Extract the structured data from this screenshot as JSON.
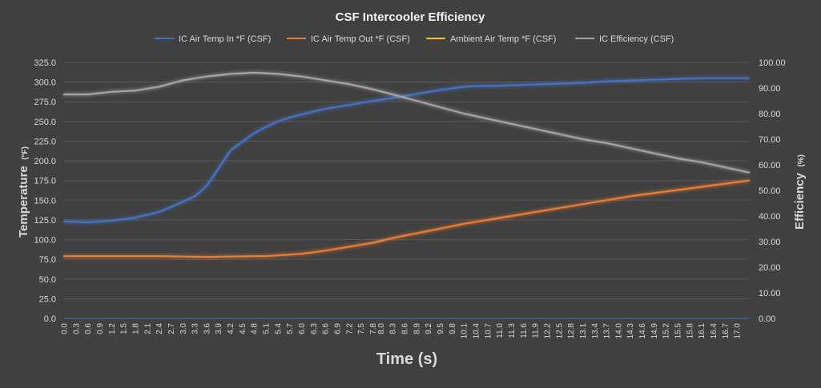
{
  "chart_data": {
    "type": "line",
    "title": "CSF Intercooler Efficiency",
    "xlabel": "Time (s)",
    "ylabel_left_main": "Temperature",
    "ylabel_left_unit": "(°F)",
    "ylabel_right_main": "Efficiency",
    "ylabel_right_unit": "(%)",
    "ylim_left": [
      0,
      325
    ],
    "ylim_right": [
      0,
      100
    ],
    "yticks_left": [
      "0.0",
      "25.0",
      "50.0",
      "75.0",
      "100.0",
      "125.0",
      "150.0",
      "175.0",
      "200.0",
      "225.0",
      "250.0",
      "275.0",
      "300.0",
      "325.0"
    ],
    "yticks_right": [
      "0.00",
      "10.00",
      "20.00",
      "30.00",
      "40.00",
      "50.00",
      "60.00",
      "70.00",
      "80.00",
      "90.00",
      "100.00"
    ],
    "x_tick_labels": [
      "0.0",
      "0.3",
      "0.6",
      "0.9",
      "1.2",
      "1.5",
      "1.8",
      "2.1",
      "2.4",
      "2.7",
      "3.0",
      "3.3",
      "3.6",
      "3.9",
      "4.2",
      "4.5",
      "4.8",
      "5.1",
      "5.4",
      "5.7",
      "6.0",
      "6.3",
      "6.6",
      "6.9",
      "7.2",
      "7.5",
      "7.8",
      "8.0",
      "8.3",
      "8.6",
      "8.9",
      "9.2",
      "9.5",
      "9.8",
      "10.1",
      "10.4",
      "10.7",
      "11.0",
      "11.3",
      "11.6",
      "11.9",
      "12.2",
      "12.5",
      "12.8",
      "13.1",
      "13.4",
      "13.7",
      "14.0",
      "14.3",
      "14.6",
      "14.9",
      "15.2",
      "15.5",
      "15.8",
      "16.1",
      "16.4",
      "16.7",
      "17.0"
    ],
    "xlim": [
      0,
      17.3
    ],
    "grid": true,
    "legend_position": "top",
    "series": [
      {
        "name": "IC Air Temp In *F (CSF)",
        "axis": "left",
        "color": "#4472C4",
        "x": [
          0,
          0.6,
          1.2,
          1.8,
          2.4,
          3.0,
          3.3,
          3.6,
          3.9,
          4.2,
          4.5,
          4.8,
          5.1,
          5.4,
          5.7,
          6.0,
          6.6,
          7.2,
          7.8,
          8.3,
          8.9,
          9.5,
          10.1,
          10.4,
          10.7,
          11.3,
          11.9,
          12.5,
          13.1,
          13.7,
          14.3,
          14.9,
          15.5,
          16.1,
          16.7,
          17.3
        ],
        "values": [
          123,
          122,
          124,
          128,
          135,
          148,
          155,
          168,
          190,
          213,
          224,
          235,
          243,
          250,
          255,
          259,
          266,
          271,
          276,
          280,
          285,
          290,
          294,
          295,
          295,
          296,
          297,
          298,
          299,
          301,
          302,
          303,
          304,
          305,
          305,
          305
        ]
      },
      {
        "name": "IC Air Temp Out *F (CSF)",
        "axis": "left",
        "color": "#ED7D31",
        "x": [
          0,
          1.2,
          2.4,
          3.6,
          4.8,
          5.1,
          5.4,
          6.0,
          6.6,
          7.2,
          7.8,
          8.3,
          8.9,
          9.5,
          10.1,
          10.7,
          11.3,
          11.9,
          12.5,
          13.1,
          13.7,
          14.3,
          14.9,
          15.5,
          16.1,
          16.7,
          17.3
        ],
        "values": [
          79,
          79,
          79,
          78,
          79,
          79,
          80,
          82,
          86,
          91,
          96,
          102,
          108,
          114,
          120,
          125,
          130,
          135,
          140,
          145,
          150,
          155,
          159,
          163,
          167,
          171,
          175
        ]
      },
      {
        "name": "Ambient Air Temp *F (CSF)",
        "axis": "left",
        "color": "#FFC000",
        "x": [
          0,
          17.3
        ],
        "values": [
          73,
          73
        ]
      },
      {
        "name": "IC Efficiency (CSF)",
        "axis": "right",
        "color": "#A5A5A5",
        "x": [
          0,
          0.6,
          1.2,
          1.8,
          2.4,
          3.0,
          3.6,
          4.2,
          4.8,
          5.4,
          6.0,
          6.6,
          7.2,
          7.8,
          8.3,
          8.9,
          9.5,
          10.1,
          10.7,
          11.3,
          11.9,
          12.5,
          13.1,
          13.7,
          14.3,
          14.9,
          15.5,
          16.1,
          16.7,
          17.3
        ],
        "values": [
          87.5,
          87.5,
          88.5,
          89,
          90.5,
          93,
          94.5,
          95.5,
          96,
          95.5,
          94.5,
          93,
          91.5,
          89.5,
          87.5,
          85,
          82.5,
          80,
          78,
          76,
          74,
          72,
          70,
          68.5,
          66.5,
          64.5,
          62.5,
          61,
          59,
          57
        ]
      }
    ]
  }
}
